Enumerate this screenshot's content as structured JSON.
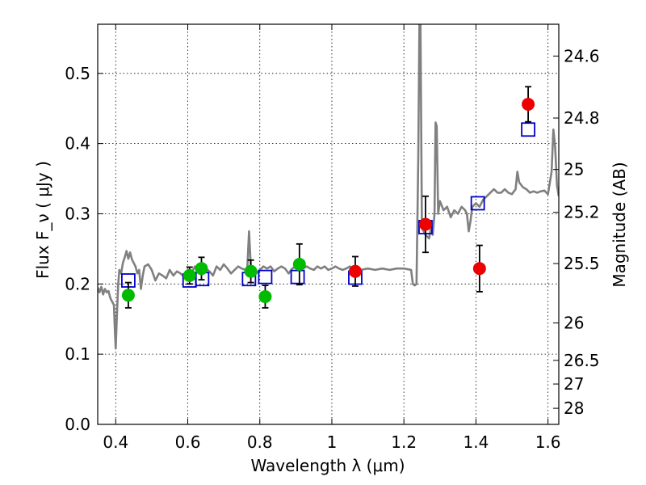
{
  "chart_data": {
    "type": "scatter",
    "xlabel": "Wavelength  λ (μm)",
    "ylabel": "Flux  F_ν  ( μJy )",
    "ylabel_right": "Magnitude (AB)",
    "xlim": [
      0.35,
      1.63
    ],
    "ylim": [
      0.0,
      0.57
    ],
    "grid": true,
    "x_ticks": [
      {
        "value": 0.4,
        "label": "0.4"
      },
      {
        "value": 0.6,
        "label": "0.6"
      },
      {
        "value": 0.8,
        "label": "0.8"
      },
      {
        "value": 1.0,
        "label": "1"
      },
      {
        "value": 1.2,
        "label": "1.2"
      },
      {
        "value": 1.4,
        "label": "1.4"
      },
      {
        "value": 1.6,
        "label": "1.6"
      }
    ],
    "y_ticks": [
      {
        "value": 0.0,
        "label": "0.0"
      },
      {
        "value": 0.1,
        "label": "0.1"
      },
      {
        "value": 0.2,
        "label": "0.2"
      },
      {
        "value": 0.3,
        "label": "0.3"
      },
      {
        "value": 0.4,
        "label": "0.4"
      },
      {
        "value": 0.5,
        "label": "0.5"
      }
    ],
    "right_ticks": [
      {
        "flux": 0.5247,
        "label": "24.6"
      },
      {
        "flux": 0.4364,
        "label": "24.8"
      },
      {
        "flux": 0.3631,
        "label": "25"
      },
      {
        "flux": 0.302,
        "label": "25.2"
      },
      {
        "flux": 0.2291,
        "label": "25.5"
      },
      {
        "flux": 0.1445,
        "label": "26"
      },
      {
        "flux": 0.0912,
        "label": "26.5"
      },
      {
        "flux": 0.0575,
        "label": "27"
      },
      {
        "flux": 0.0229,
        "label": "28"
      }
    ],
    "series": [
      {
        "kind": "line",
        "color": "#808080",
        "points": [
          [
            0.35,
            0.195
          ],
          [
            0.355,
            0.188
          ],
          [
            0.36,
            0.196
          ],
          [
            0.365,
            0.185
          ],
          [
            0.37,
            0.193
          ],
          [
            0.375,
            0.188
          ],
          [
            0.38,
            0.19
          ],
          [
            0.385,
            0.18
          ],
          [
            0.39,
            0.175
          ],
          [
            0.395,
            0.17
          ],
          [
            0.398,
            0.13
          ],
          [
            0.4,
            0.108
          ],
          [
            0.403,
            0.15
          ],
          [
            0.407,
            0.2
          ],
          [
            0.41,
            0.22
          ],
          [
            0.415,
            0.215
          ],
          [
            0.42,
            0.23
          ],
          [
            0.425,
            0.238
          ],
          [
            0.43,
            0.247
          ],
          [
            0.435,
            0.236
          ],
          [
            0.44,
            0.245
          ],
          [
            0.445,
            0.235
          ],
          [
            0.45,
            0.23
          ],
          [
            0.455,
            0.225
          ],
          [
            0.46,
            0.215
          ],
          [
            0.465,
            0.22
          ],
          [
            0.47,
            0.193
          ],
          [
            0.475,
            0.212
          ],
          [
            0.48,
            0.225
          ],
          [
            0.49,
            0.228
          ],
          [
            0.5,
            0.22
          ],
          [
            0.51,
            0.205
          ],
          [
            0.52,
            0.215
          ],
          [
            0.53,
            0.212
          ],
          [
            0.54,
            0.208
          ],
          [
            0.55,
            0.22
          ],
          [
            0.56,
            0.212
          ],
          [
            0.57,
            0.218
          ],
          [
            0.58,
            0.215
          ],
          [
            0.59,
            0.21
          ],
          [
            0.6,
            0.22
          ],
          [
            0.61,
            0.215
          ],
          [
            0.62,
            0.225
          ],
          [
            0.63,
            0.22
          ],
          [
            0.64,
            0.215
          ],
          [
            0.65,
            0.222
          ],
          [
            0.66,
            0.218
          ],
          [
            0.67,
            0.212
          ],
          [
            0.68,
            0.225
          ],
          [
            0.69,
            0.22
          ],
          [
            0.7,
            0.228
          ],
          [
            0.71,
            0.222
          ],
          [
            0.72,
            0.215
          ],
          [
            0.73,
            0.22
          ],
          [
            0.74,
            0.225
          ],
          [
            0.75,
            0.222
          ],
          [
            0.76,
            0.22
          ],
          [
            0.765,
            0.218
          ],
          [
            0.77,
            0.275
          ],
          [
            0.775,
            0.225
          ],
          [
            0.78,
            0.22
          ],
          [
            0.79,
            0.215
          ],
          [
            0.8,
            0.22
          ],
          [
            0.81,
            0.225
          ],
          [
            0.82,
            0.222
          ],
          [
            0.83,
            0.225
          ],
          [
            0.84,
            0.218
          ],
          [
            0.85,
            0.222
          ],
          [
            0.86,
            0.225
          ],
          [
            0.87,
            0.222
          ],
          [
            0.88,
            0.215
          ],
          [
            0.89,
            0.222
          ],
          [
            0.9,
            0.225
          ],
          [
            0.91,
            0.22
          ],
          [
            0.92,
            0.222
          ],
          [
            0.93,
            0.225
          ],
          [
            0.94,
            0.222
          ],
          [
            0.95,
            0.22
          ],
          [
            0.96,
            0.225
          ],
          [
            0.97,
            0.222
          ],
          [
            0.98,
            0.225
          ],
          [
            0.99,
            0.22
          ],
          [
            1.0,
            0.222
          ],
          [
            1.01,
            0.225
          ],
          [
            1.02,
            0.222
          ],
          [
            1.03,
            0.22
          ],
          [
            1.04,
            0.222
          ],
          [
            1.05,
            0.225
          ],
          [
            1.06,
            0.22
          ],
          [
            1.07,
            0.222
          ],
          [
            1.08,
            0.22
          ],
          [
            1.1,
            0.222
          ],
          [
            1.12,
            0.22
          ],
          [
            1.14,
            0.222
          ],
          [
            1.16,
            0.22
          ],
          [
            1.18,
            0.222
          ],
          [
            1.2,
            0.222
          ],
          [
            1.22,
            0.22
          ],
          [
            1.225,
            0.2
          ],
          [
            1.23,
            0.198
          ],
          [
            1.235,
            0.2
          ],
          [
            1.24,
            0.38
          ],
          [
            1.243,
            0.57
          ],
          [
            1.246,
            0.57
          ],
          [
            1.25,
            0.28
          ],
          [
            1.26,
            0.27
          ],
          [
            1.27,
            0.265
          ],
          [
            1.275,
            0.28
          ],
          [
            1.28,
            0.27
          ],
          [
            1.285,
            0.3
          ],
          [
            1.288,
            0.43
          ],
          [
            1.291,
            0.425
          ],
          [
            1.295,
            0.3
          ],
          [
            1.3,
            0.318
          ],
          [
            1.31,
            0.305
          ],
          [
            1.32,
            0.31
          ],
          [
            1.33,
            0.295
          ],
          [
            1.34,
            0.305
          ],
          [
            1.35,
            0.3
          ],
          [
            1.36,
            0.31
          ],
          [
            1.37,
            0.305
          ],
          [
            1.375,
            0.3
          ],
          [
            1.38,
            0.275
          ],
          [
            1.385,
            0.29
          ],
          [
            1.39,
            0.31
          ],
          [
            1.4,
            0.315
          ],
          [
            1.41,
            0.31
          ],
          [
            1.42,
            0.32
          ],
          [
            1.43,
            0.325
          ],
          [
            1.44,
            0.33
          ],
          [
            1.45,
            0.335
          ],
          [
            1.46,
            0.33
          ],
          [
            1.47,
            0.33
          ],
          [
            1.48,
            0.335
          ],
          [
            1.49,
            0.33
          ],
          [
            1.5,
            0.328
          ],
          [
            1.51,
            0.335
          ],
          [
            1.515,
            0.36
          ],
          [
            1.52,
            0.345
          ],
          [
            1.53,
            0.338
          ],
          [
            1.54,
            0.335
          ],
          [
            1.55,
            0.33
          ],
          [
            1.56,
            0.332
          ],
          [
            1.57,
            0.33
          ],
          [
            1.58,
            0.332
          ],
          [
            1.59,
            0.333
          ],
          [
            1.6,
            0.328
          ],
          [
            1.61,
            0.36
          ],
          [
            1.615,
            0.42
          ],
          [
            1.62,
            0.395
          ],
          [
            1.625,
            0.34
          ],
          [
            1.63,
            0.325
          ]
        ]
      },
      {
        "kind": "square",
        "color": "#0000cc",
        "points": [
          [
            0.435,
            0.205
          ],
          [
            0.605,
            0.205
          ],
          [
            0.64,
            0.207
          ],
          [
            0.77,
            0.207
          ],
          [
            0.815,
            0.21
          ],
          [
            0.905,
            0.21
          ],
          [
            1.065,
            0.209
          ],
          [
            1.26,
            0.281
          ],
          [
            1.405,
            0.315
          ],
          [
            1.545,
            0.42
          ]
        ]
      },
      {
        "kind": "circle",
        "color": "#00bb00",
        "points": [
          {
            "x": 0.435,
            "y": 0.184,
            "err": 0.018
          },
          {
            "x": 0.605,
            "y": 0.212,
            "err": 0.012
          },
          {
            "x": 0.638,
            "y": 0.222,
            "err": 0.016
          },
          {
            "x": 0.775,
            "y": 0.218,
            "err": 0.016
          },
          {
            "x": 0.815,
            "y": 0.182,
            "err": 0.016
          },
          {
            "x": 0.91,
            "y": 0.228,
            "err": 0.029
          }
        ]
      },
      {
        "kind": "circle",
        "color": "#ee0000",
        "points": [
          {
            "x": 1.065,
            "y": 0.218,
            "err": 0.021
          },
          {
            "x": 1.26,
            "y": 0.285,
            "err": 0.04
          },
          {
            "x": 1.41,
            "y": 0.222,
            "err": 0.033
          },
          {
            "x": 1.545,
            "y": 0.456,
            "err": 0.025
          }
        ]
      }
    ]
  }
}
